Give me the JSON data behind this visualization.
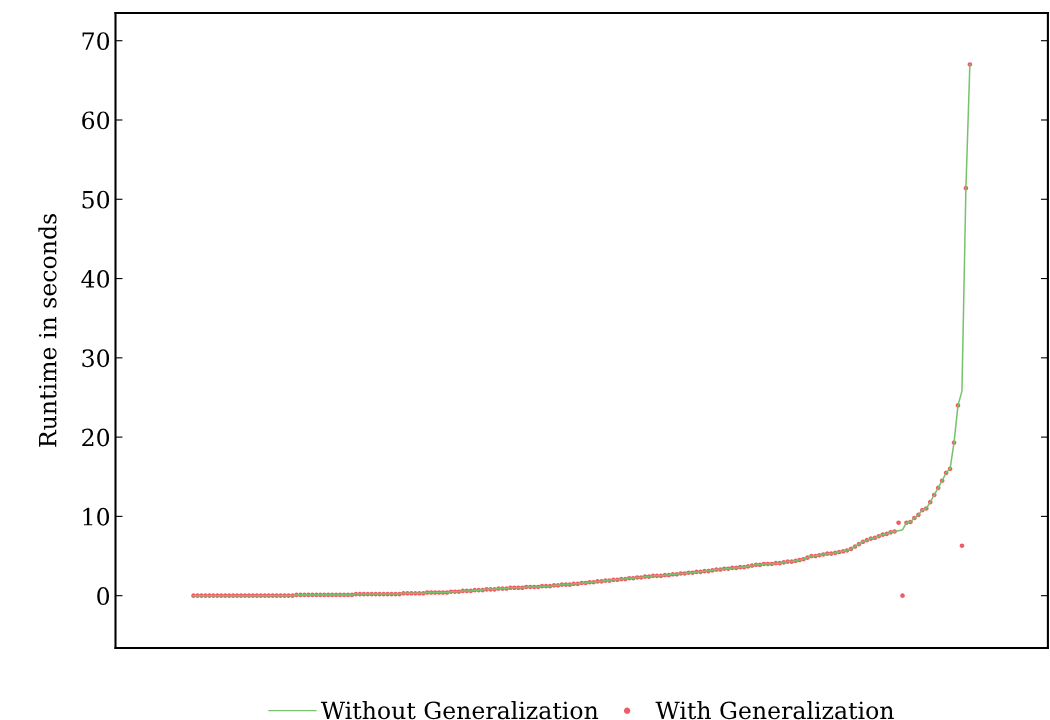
{
  "chart_data": {
    "type": "line",
    "ylabel": "Runtime in seconds",
    "categories": [
      null,
      null,
      null,
      null,
      null,
      null,
      null,
      null,
      null,
      null,
      null,
      null,
      null,
      null,
      null,
      null,
      null,
      null,
      null,
      null,
      null,
      null,
      null,
      null,
      null,
      null,
      null,
      null,
      null,
      null,
      null,
      null,
      null,
      null,
      null,
      null,
      null,
      null,
      null,
      null,
      null,
      null,
      null,
      null,
      null,
      null,
      null,
      null,
      null,
      null,
      null,
      null,
      null,
      null,
      null,
      null,
      null,
      null,
      null,
      null,
      null,
      null,
      null,
      null,
      null,
      null,
      null,
      null,
      null,
      null,
      null,
      null,
      null,
      null,
      null,
      null,
      null,
      null,
      null,
      null,
      null,
      null,
      null,
      null,
      null,
      null,
      null,
      null,
      null,
      null,
      null,
      null,
      null,
      null,
      null,
      null,
      null,
      null,
      null,
      null,
      null,
      null,
      null,
      null,
      null,
      null,
      null,
      null,
      null,
      null,
      null,
      null,
      null,
      null,
      null,
      null,
      null,
      null,
      null,
      null,
      null,
      null,
      null,
      null,
      null,
      null,
      null,
      null,
      null,
      null,
      null,
      null,
      null,
      null,
      null,
      null,
      null,
      null,
      null,
      null,
      null,
      null,
      null,
      null,
      null,
      null,
      null,
      null,
      null,
      null,
      null,
      null,
      null,
      null,
      null,
      null,
      null,
      null,
      null,
      null,
      null,
      null,
      null,
      null,
      null,
      null,
      null,
      null,
      null,
      null,
      null,
      null,
      null,
      null,
      null,
      null,
      null,
      null,
      null,
      null,
      null,
      null,
      null,
      null,
      null,
      null,
      null,
      null,
      null,
      null,
      null,
      null,
      null,
      null,
      null,
      null,
      null
    ],
    "series": [
      {
        "name": "Without Generalization",
        "color": "#77c36c",
        "marker": "none",
        "values": [
          0,
          0,
          0,
          0,
          0,
          0,
          0,
          0,
          0,
          0,
          0,
          0,
          0,
          0,
          0,
          0,
          0,
          0,
          0,
          0,
          0,
          0,
          0,
          0,
          0,
          0,
          0.1,
          0.1,
          0.1,
          0.1,
          0.1,
          0.1,
          0.1,
          0.1,
          0.1,
          0.1,
          0.1,
          0.1,
          0.1,
          0.1,
          0.1,
          0.2,
          0.2,
          0.2,
          0.2,
          0.2,
          0.2,
          0.2,
          0.2,
          0.2,
          0.2,
          0.2,
          0.2,
          0.3,
          0.3,
          0.3,
          0.3,
          0.3,
          0.3,
          0.4,
          0.4,
          0.4,
          0.4,
          0.4,
          0.4,
          0.5,
          0.5,
          0.5,
          0.6,
          0.6,
          0.6,
          0.7,
          0.7,
          0.7,
          0.8,
          0.8,
          0.8,
          0.9,
          0.9,
          0.9,
          1.0,
          1.0,
          1.0,
          1.0,
          1.1,
          1.1,
          1.1,
          1.1,
          1.2,
          1.2,
          1.2,
          1.3,
          1.3,
          1.4,
          1.4,
          1.4,
          1.5,
          1.5,
          1.6,
          1.6,
          1.7,
          1.7,
          1.8,
          1.8,
          1.9,
          1.9,
          2.0,
          2.0,
          2.1,
          2.1,
          2.2,
          2.2,
          2.3,
          2.3,
          2.4,
          2.4,
          2.5,
          2.5,
          2.5,
          2.6,
          2.6,
          2.7,
          2.7,
          2.8,
          2.8,
          2.9,
          2.9,
          3.0,
          3.0,
          3.1,
          3.1,
          3.2,
          3.3,
          3.3,
          3.4,
          3.4,
          3.5,
          3.5,
          3.6,
          3.6,
          3.7,
          3.8,
          3.9,
          3.9,
          4.0,
          4.0,
          4.0,
          4.1,
          4.1,
          4.2,
          4.3,
          4.3,
          4.4,
          4.5,
          4.6,
          4.8,
          5.0,
          5.0,
          5.1,
          5.2,
          5.3,
          5.3,
          5.4,
          5.5,
          5.6,
          5.7,
          5.9,
          6.2,
          6.5,
          6.8,
          7.0,
          7.2,
          7.3,
          7.5,
          7.7,
          7.8,
          8.0,
          8.1,
          8.2,
          8.3,
          9.2,
          9.3,
          9.8,
          10.2,
          10.8,
          11.0,
          11.8,
          12.7,
          13.6,
          14.5,
          15.5,
          16.0,
          19.3,
          24.0,
          25.8,
          51.4,
          67.0
        ]
      },
      {
        "name": "With Generalization",
        "type": "scatter",
        "color": "#f05a64",
        "marker": "circle",
        "values": [
          0,
          0,
          0,
          0,
          0,
          0,
          0,
          0,
          0,
          0,
          0,
          0,
          0,
          0,
          0,
          0,
          0,
          0,
          0,
          0,
          0,
          0,
          0,
          0,
          0,
          0,
          0.1,
          0.1,
          0.1,
          0.1,
          0.1,
          0.1,
          0.1,
          0.1,
          0.1,
          0.1,
          0.1,
          0.1,
          0.1,
          0.1,
          0.1,
          0.2,
          0.2,
          0.2,
          0.2,
          0.2,
          0.2,
          0.2,
          0.2,
          0.2,
          0.2,
          0.2,
          0.2,
          0.3,
          0.3,
          0.3,
          0.3,
          0.3,
          0.3,
          0.4,
          0.4,
          0.4,
          0.4,
          0.4,
          0.4,
          0.5,
          0.5,
          0.5,
          0.6,
          0.6,
          0.6,
          0.7,
          0.7,
          0.7,
          0.8,
          0.8,
          0.8,
          0.9,
          0.9,
          0.9,
          1.0,
          1.0,
          1.0,
          1.0,
          1.1,
          1.1,
          1.1,
          1.1,
          1.2,
          1.2,
          1.2,
          1.3,
          1.3,
          1.4,
          1.4,
          1.4,
          1.5,
          1.5,
          1.6,
          1.6,
          1.7,
          1.7,
          1.8,
          1.8,
          1.9,
          1.9,
          2.0,
          2.0,
          2.1,
          2.1,
          2.2,
          2.2,
          2.3,
          2.3,
          2.4,
          2.4,
          2.5,
          2.5,
          2.5,
          2.6,
          2.6,
          2.7,
          2.7,
          2.8,
          2.8,
          2.9,
          2.9,
          3.0,
          3.0,
          3.1,
          3.1,
          3.2,
          3.3,
          3.3,
          3.4,
          3.4,
          3.5,
          3.5,
          3.6,
          3.6,
          3.7,
          3.8,
          3.9,
          3.9,
          4.0,
          4.0,
          4.0,
          4.1,
          4.1,
          4.2,
          4.3,
          4.3,
          4.4,
          4.5,
          4.6,
          4.8,
          5.0,
          5.0,
          5.1,
          5.2,
          5.3,
          5.3,
          5.4,
          5.5,
          5.6,
          5.7,
          5.9,
          6.2,
          6.5,
          6.8,
          7.0,
          7.2,
          7.3,
          7.5,
          7.7,
          7.8,
          8.0,
          8.1,
          9.2,
          0,
          9.2,
          9.3,
          9.8,
          10.2,
          10.8,
          11.0,
          11.8,
          12.7,
          13.6,
          14.5,
          15.5,
          16.0,
          19.3,
          24.0,
          6.3,
          51.4,
          67.0
        ]
      }
    ],
    "ylim": [
      -6.6,
      73.5
    ],
    "yticks": [
      0,
      10,
      20,
      30,
      40,
      50,
      60,
      70
    ],
    "grid": false,
    "legend": "bottom",
    "tick_labels": "y"
  }
}
